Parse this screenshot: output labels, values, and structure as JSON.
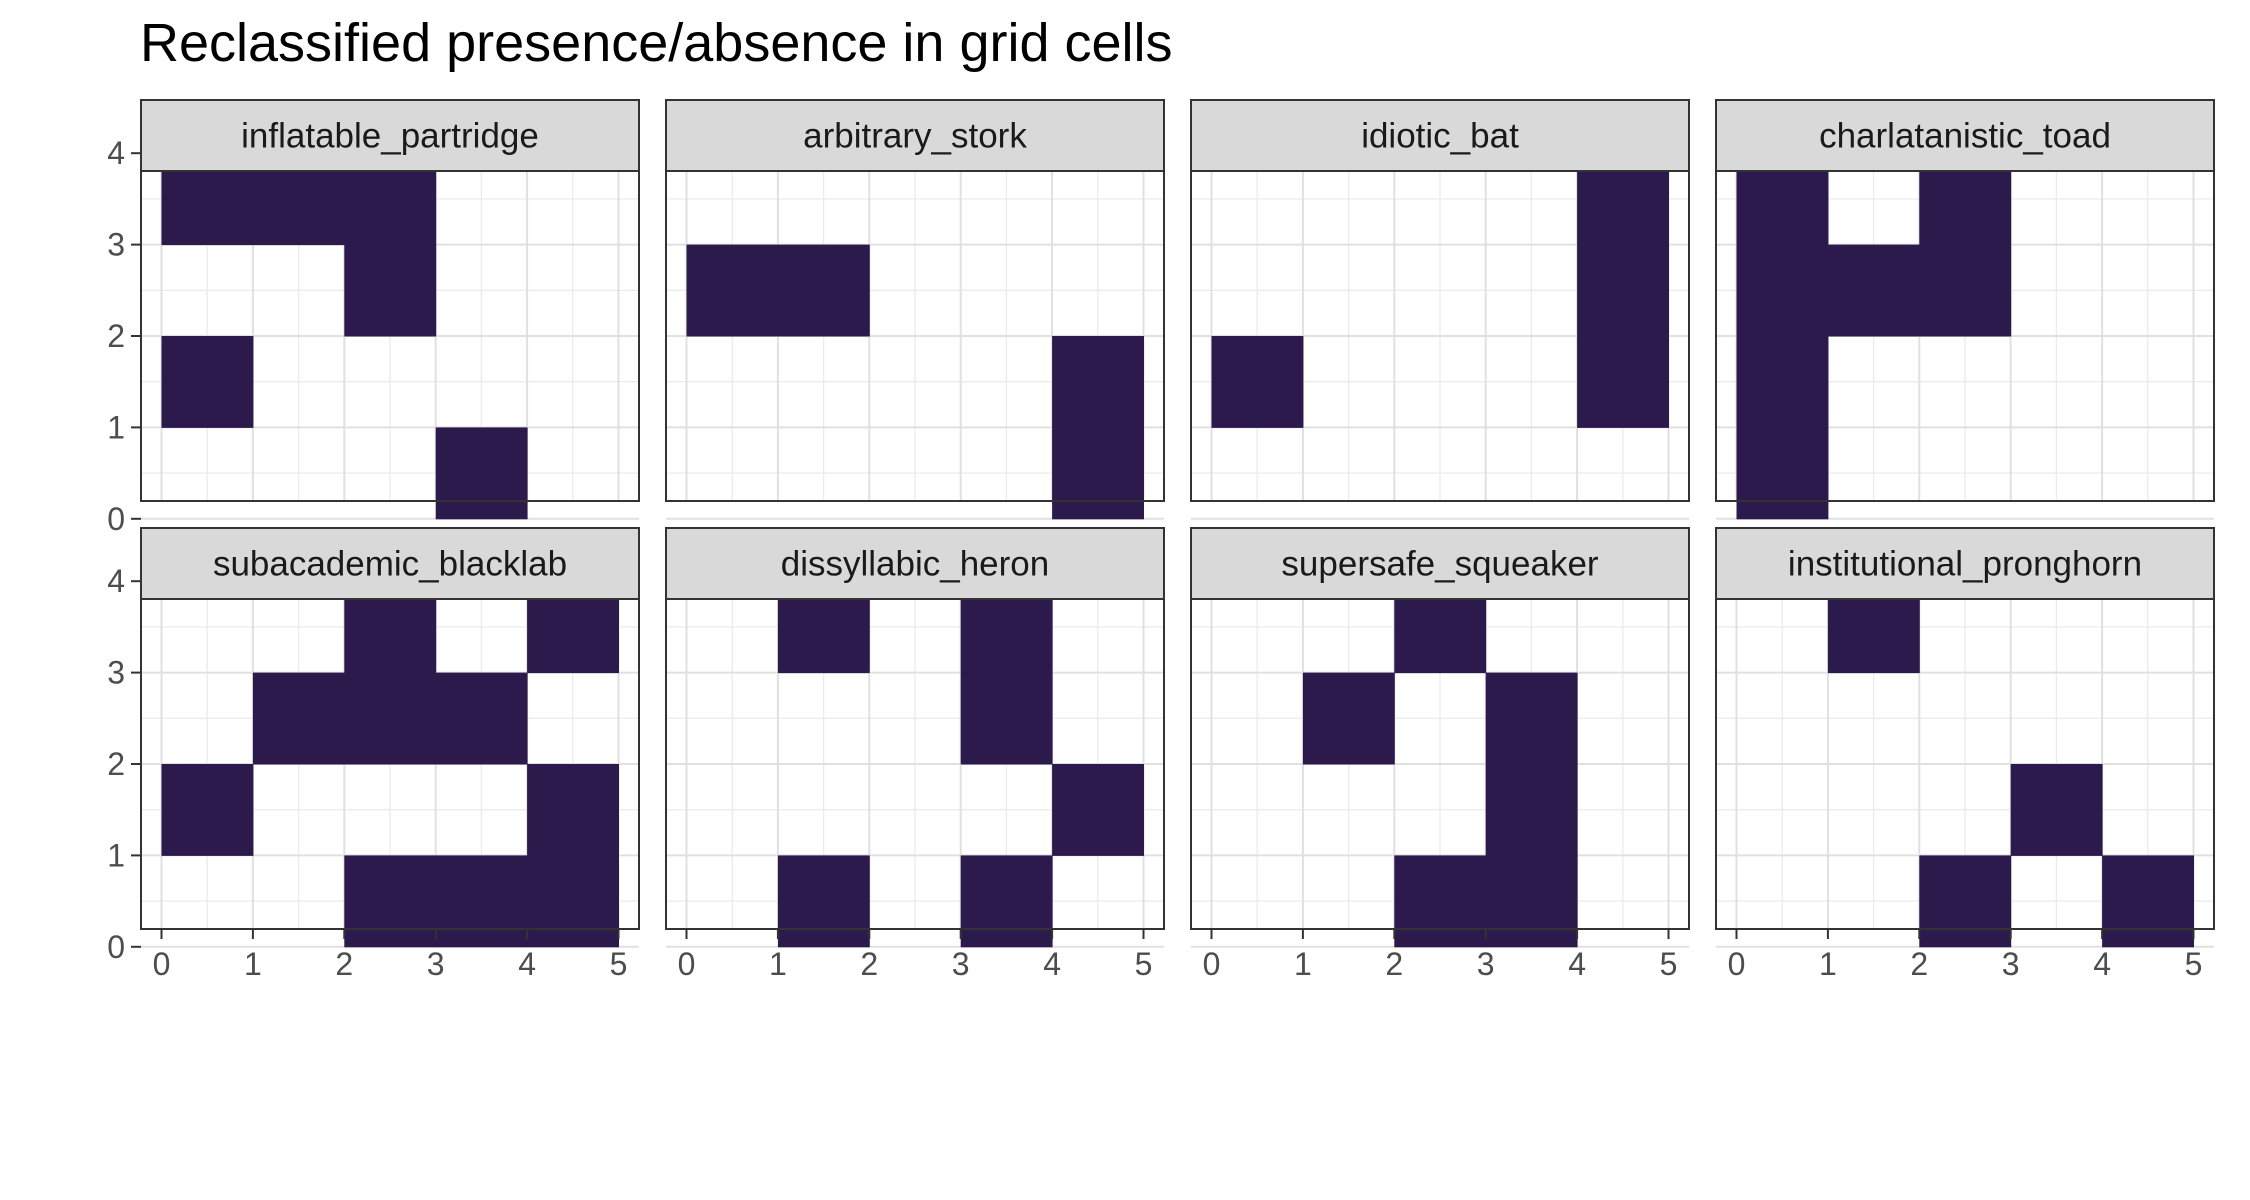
{
  "chart_data": {
    "type": "heatmap",
    "title": "Reclassified presence/absence in grid cells",
    "xlabel": "",
    "ylabel": "",
    "xlim": [
      0,
      5
    ],
    "ylim": [
      0,
      4
    ],
    "x_ticks": [
      "0",
      "1",
      "2",
      "3",
      "4",
      "5"
    ],
    "y_ticks": [
      "0",
      "1",
      "2",
      "3",
      "4"
    ],
    "grid": true,
    "fill_color": "#2D1A4C",
    "panels": [
      {
        "name": "inflatable_partridge",
        "cells": [
          [
            0,
            3
          ],
          [
            1,
            3
          ],
          [
            2,
            3
          ],
          [
            2,
            2
          ],
          [
            0,
            1
          ],
          [
            3,
            0
          ]
        ]
      },
      {
        "name": "arbitrary_stork",
        "cells": [
          [
            0,
            2
          ],
          [
            1,
            2
          ],
          [
            4,
            1
          ],
          [
            4,
            0
          ]
        ]
      },
      {
        "name": "idiotic_bat",
        "cells": [
          [
            4,
            3
          ],
          [
            4,
            2
          ],
          [
            4,
            1
          ],
          [
            0,
            1
          ]
        ]
      },
      {
        "name": "charlatanistic_toad",
        "cells": [
          [
            0,
            3
          ],
          [
            2,
            3
          ],
          [
            0,
            2
          ],
          [
            1,
            2
          ],
          [
            2,
            2
          ],
          [
            0,
            1
          ],
          [
            0,
            0
          ]
        ]
      },
      {
        "name": "subacademic_blacklab",
        "cells": [
          [
            2,
            3
          ],
          [
            4,
            3
          ],
          [
            1,
            2
          ],
          [
            2,
            2
          ],
          [
            3,
            2
          ],
          [
            0,
            1
          ],
          [
            4,
            1
          ],
          [
            2,
            0
          ],
          [
            3,
            0
          ],
          [
            4,
            0
          ]
        ]
      },
      {
        "name": "dissyllabic_heron",
        "cells": [
          [
            1,
            3
          ],
          [
            3,
            3
          ],
          [
            3,
            2
          ],
          [
            4,
            1
          ],
          [
            1,
            0
          ],
          [
            3,
            0
          ]
        ]
      },
      {
        "name": "supersafe_squeaker",
        "cells": [
          [
            2,
            3
          ],
          [
            1,
            2
          ],
          [
            3,
            2
          ],
          [
            3,
            1
          ],
          [
            2,
            0
          ],
          [
            3,
            0
          ]
        ]
      },
      {
        "name": "institutional_pronghorn",
        "cells": [
          [
            1,
            3
          ],
          [
            3,
            1
          ],
          [
            2,
            0
          ],
          [
            4,
            0
          ]
        ]
      }
    ]
  }
}
